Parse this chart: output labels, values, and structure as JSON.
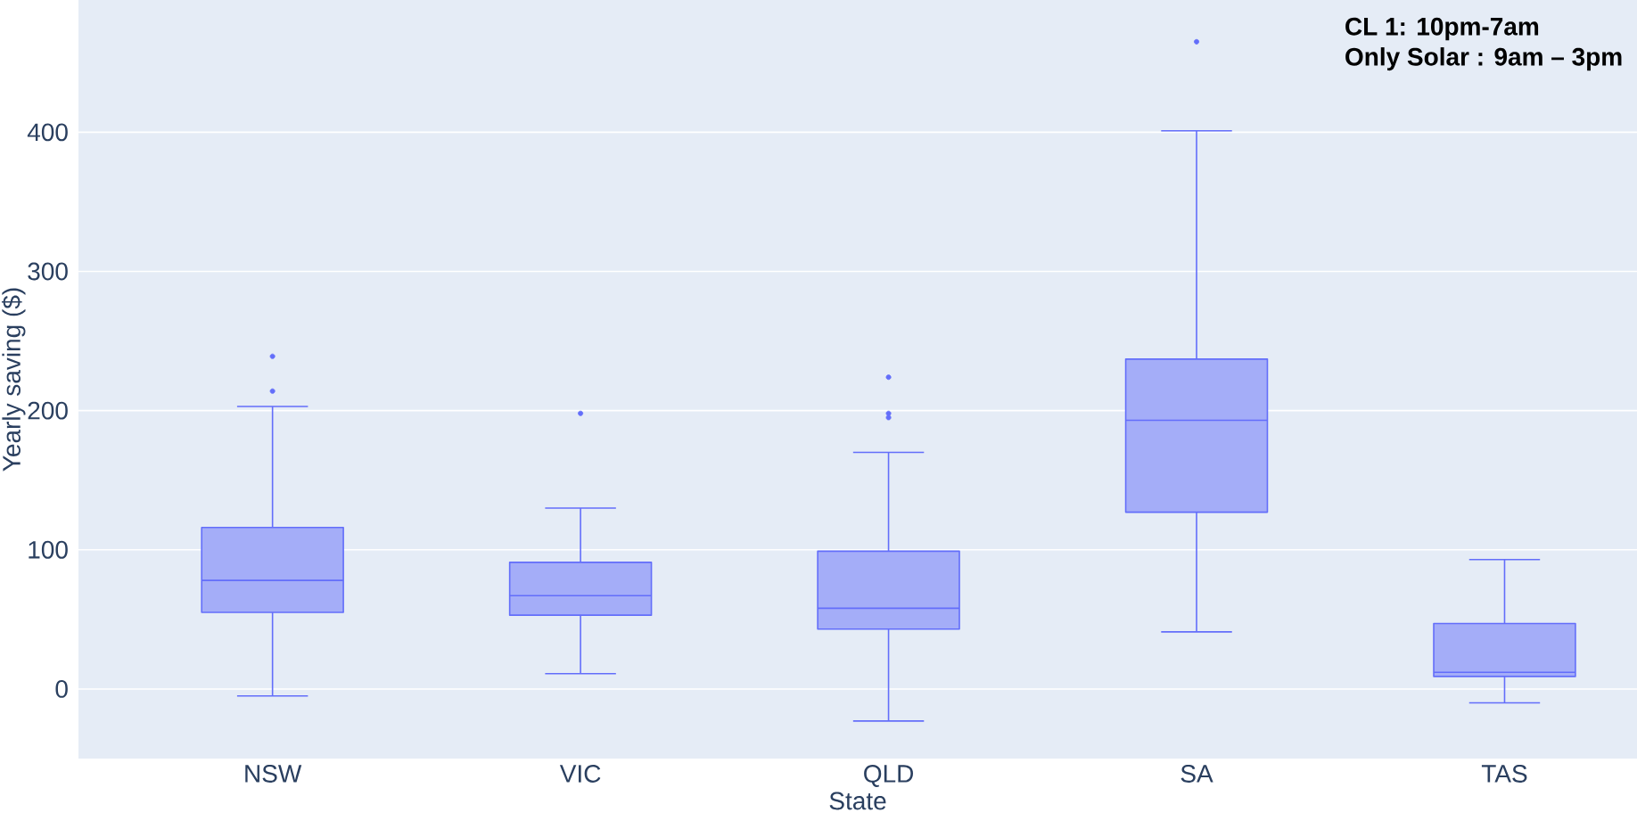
{
  "chart_data": {
    "type": "box",
    "xlabel": "State",
    "ylabel": "Yearly saving ($)",
    "annotations": [
      "CL 1: 10pm-7am",
      "Only Solar : 9am – 3pm"
    ],
    "categories": [
      "NSW",
      "VIC",
      "QLD",
      "SA",
      "TAS"
    ],
    "ylim": [
      -50,
      495
    ],
    "yticks": [
      0,
      100,
      200,
      300,
      400
    ],
    "grid": "y",
    "series": [
      {
        "color": "#636efa",
        "boxes": [
          {
            "low": -5,
            "q1": 55,
            "median": 78,
            "q3": 116,
            "high": 203,
            "outliers": [
              214,
              239
            ]
          },
          {
            "low": 11,
            "q1": 53,
            "median": 67,
            "q3": 91,
            "high": 130,
            "outliers": [
              198
            ]
          },
          {
            "low": -23,
            "q1": 43,
            "median": 58,
            "q3": 99,
            "high": 170,
            "outliers": [
              195,
              198,
              224
            ]
          },
          {
            "low": 41,
            "q1": 127,
            "median": 193,
            "q3": 237,
            "high": 401,
            "outliers": [
              465
            ]
          },
          {
            "low": -10,
            "q1": 9,
            "median": 12,
            "q3": 47,
            "high": 93
          }
        ]
      }
    ]
  }
}
